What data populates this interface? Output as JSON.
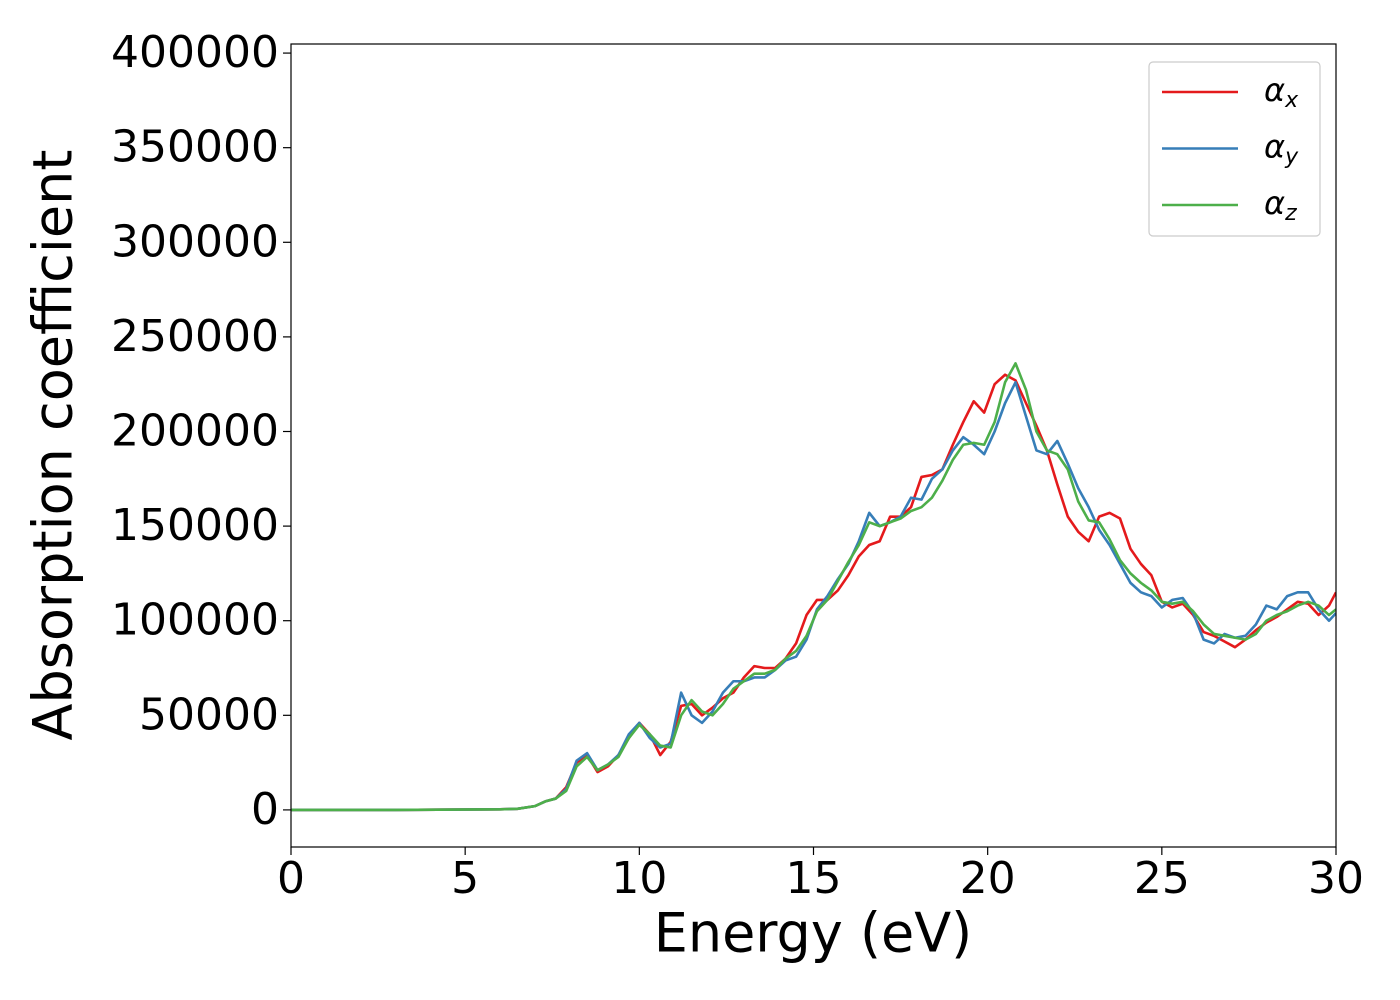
{
  "chart_data": {
    "type": "line",
    "xlabel": "Energy (eV)",
    "ylabel": "Absorption coefficient",
    "x": [
      0,
      3,
      6,
      6.5,
      7,
      7.3,
      7.6,
      7.9,
      8.2,
      8.5,
      8.8,
      9.1,
      9.4,
      9.7,
      10,
      10.3,
      10.6,
      10.9,
      11.2,
      11.5,
      11.8,
      12.1,
      12.4,
      12.7,
      13,
      13.3,
      13.6,
      13.9,
      14.2,
      14.5,
      14.8,
      15.1,
      15.4,
      15.7,
      16,
      16.3,
      16.6,
      16.9,
      17.2,
      17.5,
      17.8,
      18.1,
      18.4,
      18.7,
      19,
      19.3,
      19.6,
      19.9,
      20.2,
      20.5,
      20.8,
      21.1,
      21.4,
      21.7,
      22,
      22.3,
      22.6,
      22.9,
      23.2,
      23.5,
      23.8,
      24.1,
      24.4,
      24.7,
      25,
      25.3,
      25.6,
      25.9,
      26.2,
      26.5,
      26.8,
      27.1,
      27.4,
      27.7,
      28,
      28.3,
      28.6,
      28.9,
      29.2,
      29.5,
      29.8,
      30
    ],
    "series": [
      {
        "name": "αx",
        "color": "#e41a1c",
        "values": [
          0,
          0,
          300,
          600,
          2000,
          4500,
          6000,
          12000,
          25000,
          29000,
          20000,
          23000,
          29000,
          38000,
          46000,
          40000,
          29000,
          36000,
          55000,
          56000,
          50000,
          54000,
          59000,
          62000,
          70000,
          76000,
          75000,
          75000,
          80000,
          88000,
          103000,
          111000,
          111000,
          116000,
          124000,
          134000,
          140000,
          142000,
          155000,
          155000,
          160000,
          176000,
          177000,
          180000,
          193000,
          205000,
          216000,
          210000,
          225000,
          230000,
          227000,
          215000,
          203000,
          190000,
          172000,
          155000,
          147000,
          142000,
          155000,
          157000,
          154000,
          138000,
          130000,
          124000,
          110000,
          107000,
          109000,
          103000,
          94000,
          92000,
          89000,
          86000,
          90000,
          95000,
          99000,
          102000,
          106000,
          110000,
          109000,
          103000,
          108000,
          115000
        ]
      },
      {
        "name": "αy",
        "color": "#377eb8",
        "values": [
          0,
          0,
          300,
          600,
          2000,
          4500,
          6000,
          11000,
          26000,
          30000,
          21000,
          24000,
          29000,
          40000,
          46000,
          38000,
          33000,
          35000,
          62000,
          50000,
          46000,
          52000,
          62000,
          68000,
          68000,
          70000,
          70000,
          74000,
          79000,
          81000,
          90000,
          106000,
          113000,
          122000,
          130000,
          142000,
          157000,
          150000,
          152000,
          155000,
          165000,
          164000,
          175000,
          180000,
          190000,
          197000,
          193000,
          188000,
          200000,
          215000,
          226000,
          208000,
          190000,
          188000,
          195000,
          183000,
          170000,
          160000,
          148000,
          140000,
          130000,
          120000,
          115000,
          113000,
          107000,
          111000,
          112000,
          104000,
          90000,
          88000,
          93000,
          91000,
          92000,
          98000,
          108000,
          106000,
          113000,
          115000,
          115000,
          106000,
          100000,
          104000
        ]
      },
      {
        "name": "αz",
        "color": "#4daf4a",
        "values": [
          0,
          0,
          300,
          600,
          2000,
          4500,
          6000,
          10000,
          23000,
          28000,
          21000,
          24000,
          28000,
          38000,
          45000,
          40000,
          34000,
          33000,
          50000,
          58000,
          52000,
          50000,
          56000,
          64000,
          68000,
          72000,
          72000,
          74000,
          80000,
          84000,
          92000,
          105000,
          111000,
          121000,
          131000,
          140000,
          152000,
          150000,
          152000,
          154000,
          158000,
          160000,
          165000,
          174000,
          185000,
          193000,
          194000,
          193000,
          205000,
          226000,
          236000,
          222000,
          200000,
          190000,
          188000,
          180000,
          163000,
          153000,
          152000,
          143000,
          132000,
          125000,
          120000,
          116000,
          110000,
          109000,
          110000,
          105000,
          98000,
          93000,
          92000,
          91000,
          90000,
          93000,
          100000,
          103000,
          105000,
          108000,
          110000,
          108000,
          103000,
          106000
        ]
      }
    ],
    "xlim": [
      0,
      30
    ],
    "xticks": [
      0,
      5,
      10,
      15,
      20,
      25,
      30
    ],
    "ylim": [
      -19600,
      404800
    ],
    "yticks": [
      0,
      50000,
      100000,
      150000,
      200000,
      250000,
      300000,
      350000,
      400000
    ],
    "legend": "upper right",
    "grid": false
  }
}
